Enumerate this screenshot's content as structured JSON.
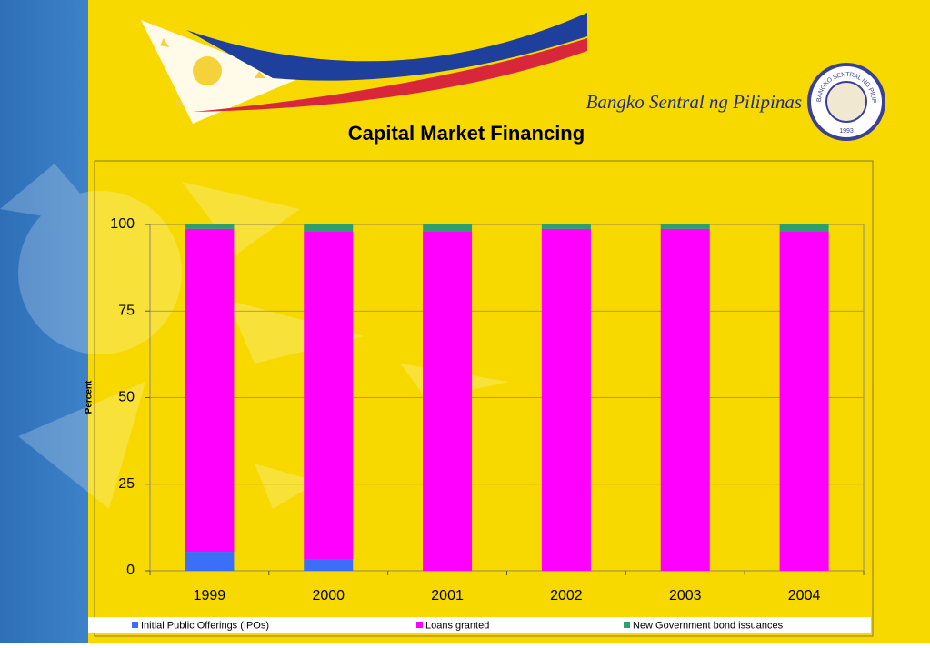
{
  "chart_data": {
    "type": "stacked_bar",
    "title": "Capital Market Financing",
    "brand": "Bangko Sentral ng Pilipinas",
    "seal_text": "BANGKO SENTRAL NG PILIPINAS",
    "seal_year": "1993",
    "y_label": "Percent",
    "categories": [
      "1999",
      "2000",
      "2001",
      "2002",
      "2003",
      "2004"
    ],
    "series": [
      {
        "name": "Initial Public Offerings (IPOs)",
        "color": "#3b6ff5",
        "values": [
          5.5,
          3.4,
          0,
          0,
          0,
          0
        ]
      },
      {
        "name": "Loans granted",
        "color": "#ff00ff",
        "values": [
          93.2,
          94.5,
          97.9,
          98.7,
          98.7,
          97.9
        ]
      },
      {
        "name": "New Government bond issuances",
        "color": "#2e9e6e",
        "values": [
          1.3,
          2.1,
          2.1,
          1.3,
          1.3,
          2.1
        ]
      }
    ],
    "ylim": [
      0,
      100
    ],
    "yticks": [
      0,
      25,
      50,
      75,
      100
    ],
    "grid": true,
    "legend": "bottom"
  }
}
